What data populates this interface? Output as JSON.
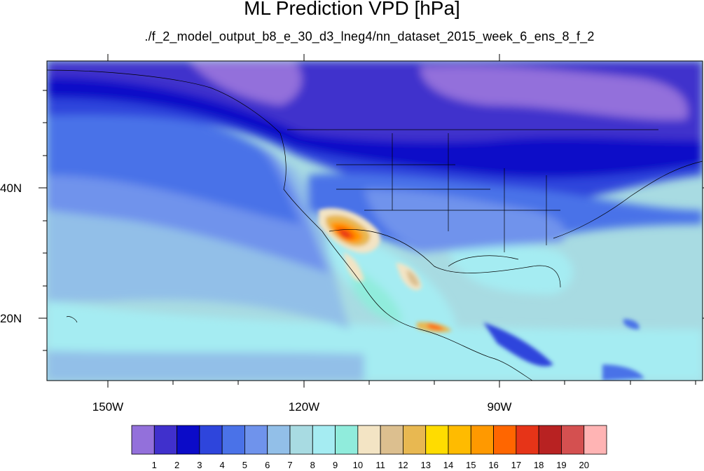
{
  "title": "ML Prediction VPD [hPa]",
  "subtitle": "./f_2_model_output_b8_e_30_d3_lneg4/nn_dataset_2015_week_6_ens_8_f_2",
  "map": {
    "longitude_labels": [
      "150W",
      "120W",
      "90W"
    ],
    "latitude_labels": [
      "40N",
      "20N"
    ]
  },
  "colorbar": {
    "labels": [
      "1",
      "2",
      "3",
      "4",
      "5",
      "6",
      "7",
      "8",
      "9",
      "10",
      "11",
      "12",
      "13",
      "14",
      "15",
      "16",
      "17",
      "18",
      "19",
      "20"
    ],
    "colors": [
      "#9370db",
      "#4030cc",
      "#0b0bc8",
      "#2e45dc",
      "#4a72e8",
      "#6f93ec",
      "#92bfe8",
      "#a8dbe2",
      "#a5ecf2",
      "#90ecdc",
      "#f3e4c4",
      "#dcbf8f",
      "#e8b851",
      "#ffdc00",
      "#ffbb00",
      "#ff9900",
      "#ff6600",
      "#e63418",
      "#b82222",
      "#d45050",
      "#ffb4b4"
    ]
  }
}
